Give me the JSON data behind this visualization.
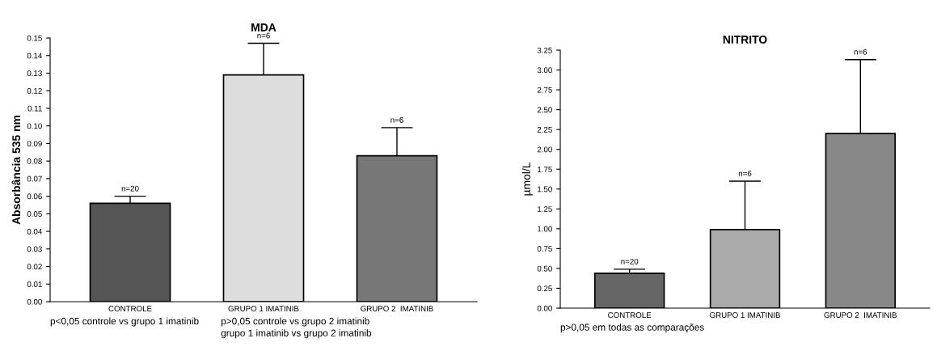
{
  "chart_data": [
    {
      "type": "bar",
      "title": "MDA",
      "ylabel": "Absorbância 535 nm",
      "categories": [
        "CONTROLE",
        "GRUPO 1 IMATINIB",
        "GRUPO 2  IMATINIB"
      ],
      "values": [
        0.056,
        0.129,
        0.083
      ],
      "errors": [
        0.004,
        0.018,
        0.016
      ],
      "colors": [
        "#555555",
        "#dddddd",
        "#777777"
      ],
      "ylim": [
        0,
        0.15
      ],
      "yticks": [
        {
          "value": 0,
          "label": "0.00"
        },
        {
          "value": 0.01,
          "label": "0.01"
        },
        {
          "value": 0.02,
          "label": "0.02"
        },
        {
          "value": 0.03,
          "label": "0.03"
        },
        {
          "value": 0.04,
          "label": "0.04"
        },
        {
          "value": 0.05,
          "label": "0.05"
        },
        {
          "value": 0.06,
          "label": "0.06"
        },
        {
          "value": 0.07,
          "label": "0.07"
        },
        {
          "value": 0.08,
          "label": "0.08"
        },
        {
          "value": 0.09,
          "label": "0.09"
        },
        {
          "value": 0.1,
          "label": "0.10"
        },
        {
          "value": 0.11,
          "label": "0.11"
        },
        {
          "value": 0.12,
          "label": "0.12"
        },
        {
          "value": 0.13,
          "label": "0.13"
        },
        {
          "value": 0.14,
          "label": "0.14"
        },
        {
          "value": 0.15,
          "label": "0.15"
        }
      ],
      "grid": false,
      "legend": false,
      "annotations": [
        {
          "text": "n=20",
          "x": "CONTROLE",
          "y": 0.06
        },
        {
          "text": "n=6",
          "x": "GRUPO 1 IMATINIB",
          "y": 0.147
        },
        {
          "text": "n=6",
          "x": "GRUPO 2  IMATINIB",
          "y": 0.099
        },
        "p<0,05 controle vs grupo 1 imatinib",
        "p>0,05 controle vs grupo 2 imatinib",
        "grupo 1 imatinib vs grupo 2 imatinib"
      ]
    },
    {
      "type": "bar",
      "title": "NITRITO",
      "ylabel": "µmol/L",
      "categories": [
        "CONTROLE",
        "GRUPO 1 IMATINIB",
        "GRUPO 2  IMATINIB"
      ],
      "values": [
        0.44,
        0.99,
        2.2
      ],
      "errors": [
        0.05,
        0.61,
        0.93
      ],
      "colors": [
        "#666666",
        "#aaaaaa",
        "#888888"
      ],
      "ylim": [
        0,
        3.25
      ],
      "yticks": [
        {
          "value": 0,
          "label": "0.00"
        },
        {
          "value": 0.25,
          "label": "0.25"
        },
        {
          "value": 0.5,
          "label": "0.50"
        },
        {
          "value": 0.75,
          "label": "0.75"
        },
        {
          "value": 1,
          "label": "1.00"
        },
        {
          "value": 1.25,
          "label": "1.25"
        },
        {
          "value": 1.5,
          "label": "1.50"
        },
        {
          "value": 1.75,
          "label": "1.75"
        },
        {
          "value": 2,
          "label": "2.00"
        },
        {
          "value": 2.25,
          "label": "2.25"
        },
        {
          "value": 2.5,
          "label": "2.50"
        },
        {
          "value": 2.75,
          "label": "2.75"
        },
        {
          "value": 3,
          "label": "3.00"
        },
        {
          "value": 3.25,
          "label": "3.25"
        }
      ],
      "grid": false,
      "legend": false,
      "annotations": [
        {
          "text": "n=20",
          "x": "CONTROLE",
          "y": 0.49
        },
        {
          "text": "n=6",
          "x": "GRUPO 1 IMATINIB",
          "y": 1.6
        },
        {
          "text": "n=6",
          "x": "GRUPO 2  IMATINIB",
          "y": 3.13
        },
        "p>0,05 em todas as comparações"
      ]
    }
  ]
}
